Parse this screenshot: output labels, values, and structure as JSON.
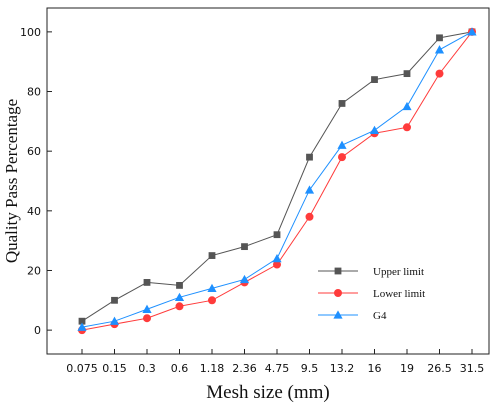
{
  "chart_data": {
    "type": "line",
    "xlabel": "Mesh size (mm)",
    "ylabel": "Quality Pass Percentage",
    "categories": [
      "0.075",
      "0.15",
      "0.3",
      "0.6",
      "1.18",
      "2.36",
      "4.75",
      "9.5",
      "13.2",
      "16",
      "19",
      "26.5",
      "31.5"
    ],
    "ylim": [
      -8,
      108
    ],
    "yticks": [
      0,
      20,
      40,
      60,
      80,
      100
    ],
    "grid": false,
    "legend_position": "bottom-right",
    "series": [
      {
        "name": "Upper limit",
        "color": "#555555",
        "marker": "square",
        "values": [
          3,
          10,
          16,
          15,
          25,
          28,
          32,
          58,
          76,
          84,
          86,
          98,
          100
        ]
      },
      {
        "name": "Lower limit",
        "color": "#ff3b3b",
        "marker": "circle",
        "values": [
          0,
          2,
          4,
          8,
          10,
          16,
          22,
          38,
          58,
          66,
          68,
          86,
          100
        ]
      },
      {
        "name": "G4",
        "color": "#1e90ff",
        "marker": "triangle",
        "values": [
          1,
          3,
          7,
          11,
          14,
          17,
          24,
          47,
          62,
          67,
          75,
          94,
          100
        ]
      }
    ]
  }
}
